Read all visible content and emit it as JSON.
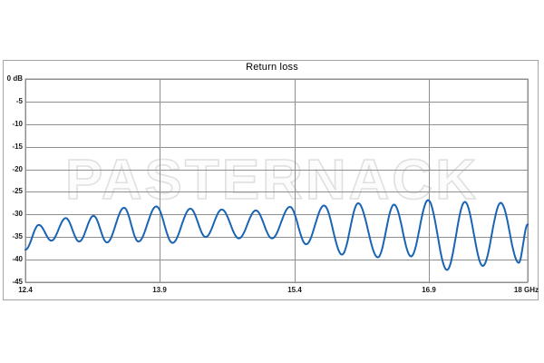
{
  "watermark": {
    "text": "PASTERNACK"
  },
  "colors": {
    "curve": "#1a64b4",
    "grid": "#8f8f8f",
    "outer_border": "#a6a6a6",
    "watermark_stroke": "#e0e0e0",
    "watermark_fill": "#fcfcfc",
    "label_text": "#1a1a1a"
  },
  "chart_data": {
    "type": "line",
    "title": "Return loss",
    "xlabel": "",
    "ylabel": "dB",
    "x_unit": "GHz",
    "xlim": [
      12.4,
      18
    ],
    "ylim": [
      -45,
      0
    ],
    "grid": true,
    "legend": "none",
    "x_ticks": [
      12.4,
      13.9,
      15.4,
      16.9,
      18
    ],
    "x_tick_labels": [
      "12.4",
      "13.9",
      "15.4",
      "16.9",
      "18 GHz"
    ],
    "y_ticks": [
      0,
      -5,
      -10,
      -15,
      -20,
      -25,
      -30,
      -35,
      -40,
      -45
    ],
    "y_tick_labels": [
      "0 dB",
      "-5",
      "-10",
      "-15",
      "-20",
      "-25",
      "-30",
      "-35",
      "-40",
      "-45"
    ],
    "sampling": "alternating ripple extrema (peak/null) read from trace",
    "series": [
      {
        "name": "Return loss",
        "color": "#1a64b4",
        "points": [
          [
            12.4,
            -37.8
          ],
          [
            12.55,
            -32.3
          ],
          [
            12.69,
            -35.8
          ],
          [
            12.85,
            -30.8
          ],
          [
            13.0,
            -36.0
          ],
          [
            13.16,
            -30.3
          ],
          [
            13.31,
            -36.2
          ],
          [
            13.5,
            -28.5
          ],
          [
            13.66,
            -36.0
          ],
          [
            13.86,
            -28.2
          ],
          [
            14.04,
            -36.3
          ],
          [
            14.24,
            -28.7
          ],
          [
            14.41,
            -35.0
          ],
          [
            14.59,
            -28.9
          ],
          [
            14.78,
            -35.3
          ],
          [
            14.97,
            -29.1
          ],
          [
            15.15,
            -35.3
          ],
          [
            15.35,
            -28.3
          ],
          [
            15.53,
            -36.6
          ],
          [
            15.73,
            -28.0
          ],
          [
            15.93,
            -38.9
          ],
          [
            16.11,
            -27.5
          ],
          [
            16.33,
            -39.5
          ],
          [
            16.51,
            -27.8
          ],
          [
            16.7,
            -39.3
          ],
          [
            16.89,
            -26.8
          ],
          [
            17.1,
            -42.3
          ],
          [
            17.3,
            -27.2
          ],
          [
            17.5,
            -41.4
          ],
          [
            17.7,
            -27.4
          ],
          [
            17.9,
            -40.7
          ],
          [
            18.0,
            -32.2
          ]
        ]
      }
    ]
  }
}
